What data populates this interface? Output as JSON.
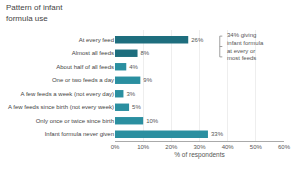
{
  "chart_data": {
    "type": "bar",
    "orientation": "horizontal",
    "title": "Pattern of infant\nformula use",
    "categories": [
      "Infant formula never given",
      "Only once or twice since birth",
      "A few feeds since birth (not every week)",
      "A few feeds a week (not every day)",
      "One or two feeds a day",
      "About half of all feeds",
      "Almost all feeds",
      "At every feed"
    ],
    "values": [
      33,
      10,
      5,
      3,
      9,
      4,
      8,
      26
    ],
    "value_labels": [
      "33%",
      "10%",
      "5%",
      "3%",
      "9%",
      "4%",
      "8%",
      "26%"
    ],
    "data_labels": true,
    "colors": [
      "#2a8fa0",
      "#2a8fa0",
      "#2a8fa0",
      "#2a8fa0",
      "#2a8fa0",
      "#2a8fa0",
      "#1e6e7e",
      "#1e6e7e"
    ],
    "xlabel": "% of respondents",
    "xlim": [
      0,
      60
    ],
    "xticks": [
      {
        "value": 0,
        "label": "0%"
      },
      {
        "value": 10,
        "label": "10%"
      },
      {
        "value": 20,
        "label": "20%"
      },
      {
        "value": 30,
        "label": "30%"
      },
      {
        "value": 40,
        "label": "40%"
      },
      {
        "value": 50,
        "label": "50%"
      },
      {
        "value": 60,
        "label": "60%"
      }
    ],
    "grid": true,
    "annotations": [
      {
        "text": "34% giving\ninfant formula\nat every or\nmost feeds"
      }
    ]
  }
}
